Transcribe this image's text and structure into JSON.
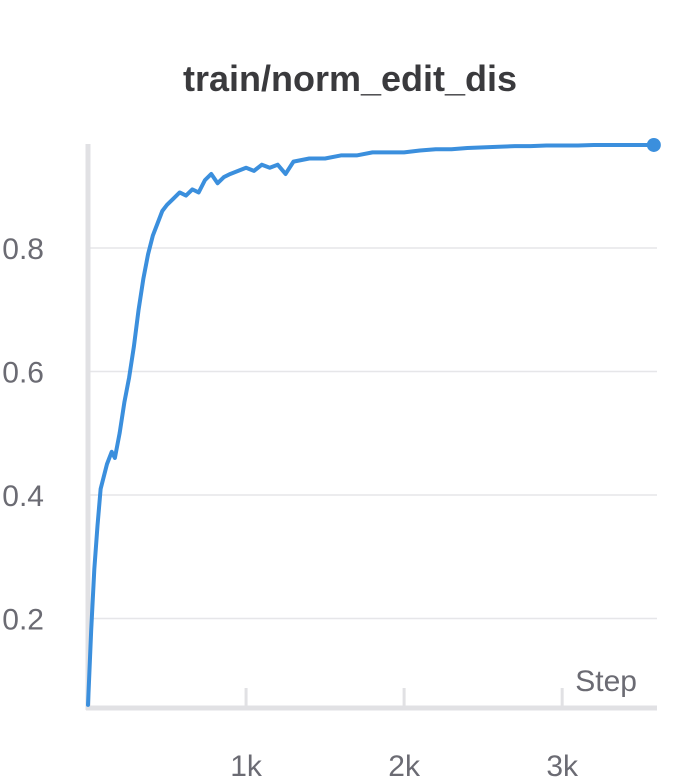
{
  "chart_data": {
    "type": "line",
    "title": "train/norm_edit_dis",
    "xlabel": "Step",
    "ylabel": "",
    "xlim": [
      0,
      3600
    ],
    "ylim": [
      0.055,
      0.975
    ],
    "x_ticks": [
      1000,
      2000,
      3000
    ],
    "x_tick_labels": [
      "1k",
      "2k",
      "3k"
    ],
    "y_ticks": [
      0.2,
      0.4,
      0.6,
      0.8
    ],
    "y_tick_labels": [
      "0.2",
      "0.4",
      "0.6",
      "0.8"
    ],
    "grid": true,
    "line_color": "#3b8fdd",
    "series": [
      {
        "name": "",
        "points": [
          [
            0,
            0.06
          ],
          [
            20,
            0.18
          ],
          [
            40,
            0.28
          ],
          [
            60,
            0.35
          ],
          [
            80,
            0.41
          ],
          [
            100,
            0.43
          ],
          [
            120,
            0.45
          ],
          [
            150,
            0.47
          ],
          [
            170,
            0.46
          ],
          [
            200,
            0.5
          ],
          [
            230,
            0.55
          ],
          [
            260,
            0.59
          ],
          [
            290,
            0.64
          ],
          [
            320,
            0.7
          ],
          [
            350,
            0.75
          ],
          [
            380,
            0.79
          ],
          [
            410,
            0.82
          ],
          [
            440,
            0.84
          ],
          [
            470,
            0.86
          ],
          [
            500,
            0.87
          ],
          [
            540,
            0.88
          ],
          [
            580,
            0.89
          ],
          [
            620,
            0.885
          ],
          [
            660,
            0.895
          ],
          [
            700,
            0.89
          ],
          [
            740,
            0.91
          ],
          [
            780,
            0.92
          ],
          [
            820,
            0.905
          ],
          [
            860,
            0.915
          ],
          [
            900,
            0.92
          ],
          [
            950,
            0.925
          ],
          [
            1000,
            0.93
          ],
          [
            1050,
            0.925
          ],
          [
            1100,
            0.935
          ],
          [
            1150,
            0.93
          ],
          [
            1200,
            0.935
          ],
          [
            1250,
            0.92
          ],
          [
            1300,
            0.94
          ],
          [
            1400,
            0.945
          ],
          [
            1500,
            0.945
          ],
          [
            1600,
            0.95
          ],
          [
            1700,
            0.95
          ],
          [
            1800,
            0.955
          ],
          [
            1900,
            0.955
          ],
          [
            2000,
            0.955
          ],
          [
            2100,
            0.958
          ],
          [
            2200,
            0.96
          ],
          [
            2300,
            0.96
          ],
          [
            2400,
            0.962
          ],
          [
            2500,
            0.963
          ],
          [
            2600,
            0.964
          ],
          [
            2700,
            0.965
          ],
          [
            2800,
            0.965
          ],
          [
            2900,
            0.966
          ],
          [
            3000,
            0.966
          ],
          [
            3100,
            0.966
          ],
          [
            3200,
            0.967
          ],
          [
            3300,
            0.967
          ],
          [
            3400,
            0.967
          ],
          [
            3500,
            0.967
          ],
          [
            3580,
            0.967
          ]
        ]
      }
    ]
  }
}
